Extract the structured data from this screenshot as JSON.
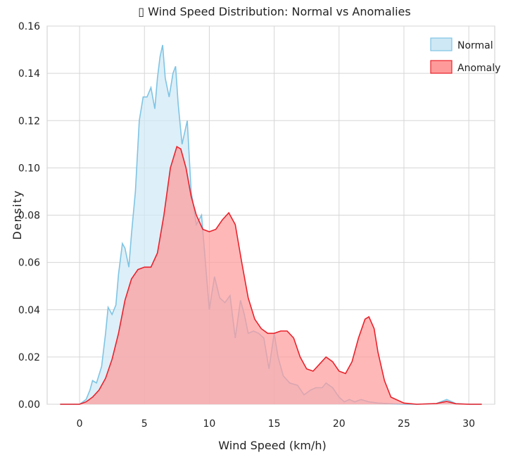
{
  "chart_data": {
    "type": "area",
    "title": "▯ Wind Speed Distribution: Normal vs Anomalies",
    "xlabel": "Wind Speed (km/h)",
    "ylabel": "Density",
    "xlim": [
      -2.5,
      32
    ],
    "ylim": [
      0,
      0.16
    ],
    "xticks": [
      "0",
      "5",
      "10",
      "15",
      "20",
      "25",
      "30"
    ],
    "yticks": [
      "0.00",
      "0.02",
      "0.04",
      "0.06",
      "0.08",
      "0.10",
      "0.12",
      "0.14",
      "0.16"
    ],
    "grid": true,
    "legend_position": "top-right",
    "series": [
      {
        "name": "Normal",
        "fill": "#cfe8f5",
        "stroke": "#7fc4e4",
        "points": [
          [
            -1.5,
            0
          ],
          [
            0.0,
            0.0
          ],
          [
            0.5,
            0.002
          ],
          [
            0.8,
            0.006
          ],
          [
            1.0,
            0.01
          ],
          [
            1.3,
            0.009
          ],
          [
            1.7,
            0.016
          ],
          [
            2.0,
            0.03
          ],
          [
            2.2,
            0.041
          ],
          [
            2.5,
            0.038
          ],
          [
            2.8,
            0.042
          ],
          [
            3.0,
            0.055
          ],
          [
            3.3,
            0.068
          ],
          [
            3.5,
            0.066
          ],
          [
            3.8,
            0.058
          ],
          [
            4.0,
            0.072
          ],
          [
            4.3,
            0.09
          ],
          [
            4.6,
            0.12
          ],
          [
            4.9,
            0.13
          ],
          [
            5.2,
            0.13
          ],
          [
            5.5,
            0.134
          ],
          [
            5.8,
            0.125
          ],
          [
            6.0,
            0.138
          ],
          [
            6.2,
            0.147
          ],
          [
            6.4,
            0.152
          ],
          [
            6.6,
            0.138
          ],
          [
            6.9,
            0.13
          ],
          [
            7.2,
            0.14
          ],
          [
            7.4,
            0.143
          ],
          [
            7.6,
            0.127
          ],
          [
            7.9,
            0.11
          ],
          [
            8.1,
            0.115
          ],
          [
            8.3,
            0.12
          ],
          [
            8.6,
            0.09
          ],
          [
            9.0,
            0.076
          ],
          [
            9.4,
            0.08
          ],
          [
            9.7,
            0.06
          ],
          [
            10.0,
            0.04
          ],
          [
            10.4,
            0.054
          ],
          [
            10.8,
            0.045
          ],
          [
            11.2,
            0.043
          ],
          [
            11.6,
            0.046
          ],
          [
            12.0,
            0.028
          ],
          [
            12.4,
            0.044
          ],
          [
            12.7,
            0.038
          ],
          [
            13.0,
            0.03
          ],
          [
            13.4,
            0.031
          ],
          [
            13.8,
            0.03
          ],
          [
            14.2,
            0.028
          ],
          [
            14.6,
            0.015
          ],
          [
            15.0,
            0.03
          ],
          [
            15.3,
            0.02
          ],
          [
            15.7,
            0.012
          ],
          [
            16.2,
            0.009
          ],
          [
            16.8,
            0.008
          ],
          [
            17.3,
            0.004
          ],
          [
            17.8,
            0.006
          ],
          [
            18.2,
            0.007
          ],
          [
            18.7,
            0.007
          ],
          [
            19.0,
            0.009
          ],
          [
            19.5,
            0.007
          ],
          [
            20.0,
            0.003
          ],
          [
            20.4,
            0.001
          ],
          [
            20.8,
            0.002
          ],
          [
            21.2,
            0.001
          ],
          [
            21.7,
            0.002
          ],
          [
            22.3,
            0.001
          ],
          [
            23.0,
            0.0005
          ],
          [
            24.0,
            0.0002
          ],
          [
            25.0,
            0.0
          ],
          [
            26.0,
            0.0
          ],
          [
            27.5,
            0.0003
          ],
          [
            28.3,
            0.002
          ],
          [
            29.0,
            0.0003
          ],
          [
            30.0,
            0.0
          ],
          [
            31.0,
            0
          ]
        ]
      },
      {
        "name": "Anomaly",
        "fill": "#ff9a9a",
        "stroke": "#e8222b",
        "points": [
          [
            -1.5,
            0
          ],
          [
            0.0,
            0.0
          ],
          [
            0.5,
            0.001
          ],
          [
            1.0,
            0.003
          ],
          [
            1.5,
            0.006
          ],
          [
            2.0,
            0.011
          ],
          [
            2.5,
            0.019
          ],
          [
            3.0,
            0.03
          ],
          [
            3.5,
            0.044
          ],
          [
            4.0,
            0.053
          ],
          [
            4.5,
            0.057
          ],
          [
            5.0,
            0.058
          ],
          [
            5.5,
            0.058
          ],
          [
            6.0,
            0.064
          ],
          [
            6.5,
            0.08
          ],
          [
            7.0,
            0.1
          ],
          [
            7.5,
            0.109
          ],
          [
            7.8,
            0.108
          ],
          [
            8.2,
            0.1
          ],
          [
            8.6,
            0.088
          ],
          [
            9.0,
            0.08
          ],
          [
            9.5,
            0.074
          ],
          [
            10.0,
            0.073
          ],
          [
            10.5,
            0.074
          ],
          [
            11.0,
            0.078
          ],
          [
            11.5,
            0.081
          ],
          [
            12.0,
            0.076
          ],
          [
            12.5,
            0.06
          ],
          [
            13.0,
            0.045
          ],
          [
            13.5,
            0.036
          ],
          [
            14.0,
            0.032
          ],
          [
            14.5,
            0.03
          ],
          [
            15.0,
            0.03
          ],
          [
            15.5,
            0.031
          ],
          [
            16.0,
            0.031
          ],
          [
            16.5,
            0.028
          ],
          [
            17.0,
            0.02
          ],
          [
            17.5,
            0.015
          ],
          [
            18.0,
            0.014
          ],
          [
            18.5,
            0.017
          ],
          [
            19.0,
            0.02
          ],
          [
            19.5,
            0.018
          ],
          [
            20.0,
            0.014
          ],
          [
            20.5,
            0.013
          ],
          [
            21.0,
            0.018
          ],
          [
            21.5,
            0.028
          ],
          [
            22.0,
            0.036
          ],
          [
            22.3,
            0.037
          ],
          [
            22.7,
            0.032
          ],
          [
            23.0,
            0.022
          ],
          [
            23.5,
            0.01
          ],
          [
            24.0,
            0.003
          ],
          [
            25.0,
            0.0005
          ],
          [
            26.0,
            0.0
          ],
          [
            27.5,
            0.0003
          ],
          [
            28.3,
            0.0012
          ],
          [
            29.0,
            0.0002
          ],
          [
            30.0,
            0.0
          ],
          [
            31.0,
            0
          ]
        ]
      }
    ]
  }
}
